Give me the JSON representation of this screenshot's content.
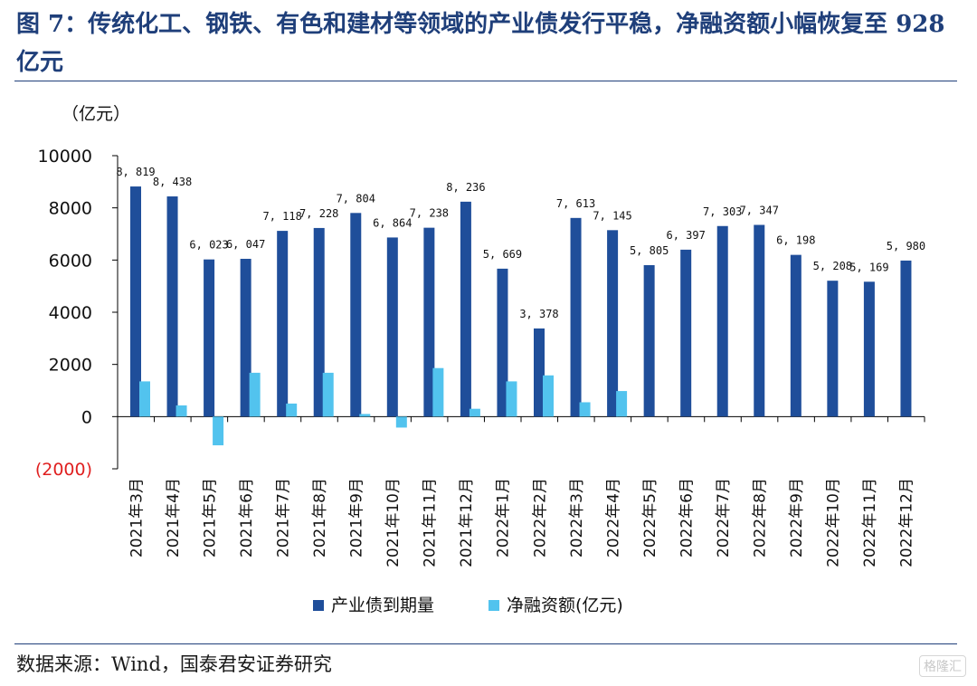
{
  "figure": {
    "title": "图 7：传统化工、钢铁、有色和建材等领域的产业债发行平稳，净融资额小幅恢复至 928 亿元",
    "source": "数据来源：Wind，国泰君安证券研究",
    "watermark": "格隆汇"
  },
  "colors": {
    "title": "#1f3f7a",
    "series_dark": "#1f4e9a",
    "series_light": "#52c3ee",
    "negative_tick": "#e02020"
  },
  "chart_data": {
    "type": "bar",
    "unit_label": "（亿元）",
    "ylim": [
      -2000,
      10000
    ],
    "yticks": [
      -2000,
      0,
      2000,
      4000,
      6000,
      8000,
      10000
    ],
    "ytick_labels": [
      "(2000)",
      "0",
      "2000",
      "4000",
      "6000",
      "8000",
      "10000"
    ],
    "categories": [
      "2021年3月",
      "2021年4月",
      "2021年5月",
      "2021年6月",
      "2021年7月",
      "2021年8月",
      "2021年9月",
      "2021年10月",
      "2021年11月",
      "2021年12月",
      "2022年1月",
      "2022年2月",
      "2022年3月",
      "2022年4月",
      "2022年5月",
      "2022年6月",
      "2022年7月",
      "2022年8月",
      "2022年9月",
      "2022年10月",
      "2022年11月",
      "2022年12月"
    ],
    "series": [
      {
        "name": "产业债到期量",
        "values": [
          8819,
          8438,
          6023,
          6047,
          7118,
          7228,
          7804,
          6864,
          7238,
          8236,
          5669,
          3378,
          7613,
          7145,
          5805,
          6397,
          7303,
          7347,
          6198,
          5208,
          5169,
          5980
        ],
        "labels": [
          "8, 819",
          "8, 438",
          "6, 023",
          "6, 047",
          "7, 118",
          "7, 228",
          "7, 804",
          "6, 864",
          "7, 238",
          "8, 236",
          "5, 669",
          "3, 378",
          "7, 613",
          "7, 145",
          "5, 805",
          "6, 397",
          "7, 303",
          "7, 347",
          "6, 198",
          "5, 208",
          "5, 169",
          "5, 980"
        ]
      },
      {
        "name": "净融资额(亿元)",
        "values": [
          1350,
          430,
          -1100,
          1680,
          500,
          1680,
          100,
          -420,
          1860,
          300,
          1350,
          1580,
          550,
          980,
          0,
          0,
          0,
          0,
          0,
          0,
          0,
          0
        ]
      }
    ],
    "legend": [
      "产业债到期量",
      "净融资额(亿元)"
    ],
    "legend_position": "bottom-center",
    "grid": false
  }
}
